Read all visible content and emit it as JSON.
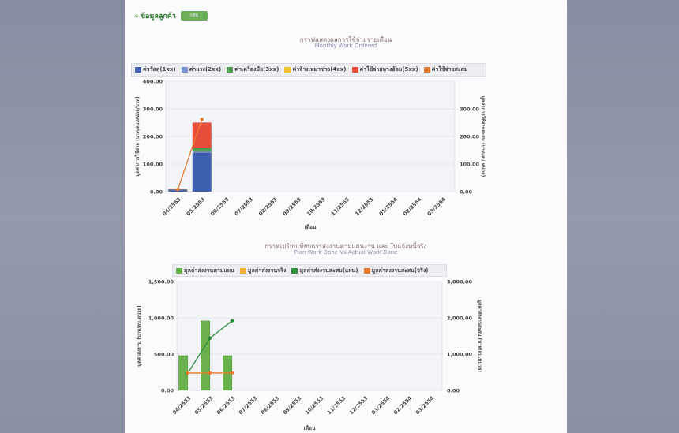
{
  "header": {
    "back_link": "ข้อมูลลูกค้า",
    "button_label": "กลับ"
  },
  "chart_data": [
    {
      "type": "bar",
      "title": "กราฟแสดงผลการใช้จ่ายรายเดือน",
      "subtitle": "Monthly Work Ordered",
      "xlabel": "เดือน",
      "ylabel": "มูลค่าการใช้จ่าย (บาท/ลบ.หน่วย/บาท)",
      "y2label": "มูลค่าการใช้จ่ายสะสม (บาท/ลบ.หน่วย)",
      "categories": [
        "04/2553",
        "05/2553",
        "06/2553",
        "07/2553",
        "08/2553",
        "09/2553",
        "10/2553",
        "11/2553",
        "12/2553",
        "01/2554",
        "02/2554",
        "03/2554"
      ],
      "ylim": [
        0,
        400
      ],
      "y2lim": [
        0,
        400
      ],
      "yticks": [
        "0.00",
        "100.00",
        "200.00",
        "300.00",
        "400.00"
      ],
      "y2ticks": [
        "0.00",
        "100.00",
        "200.00",
        "300.00"
      ],
      "legend_position": "top",
      "series": [
        {
          "name": "ค่าวัสดุ(1xx)",
          "color": "#3f5fb0",
          "kind": "stacked-bar",
          "values": [
            5,
            140,
            null,
            null,
            null,
            null,
            null,
            null,
            null,
            null,
            null,
            null
          ]
        },
        {
          "name": "ค่าแรง(2xx)",
          "color": "#7c8fd0",
          "kind": "stacked-bar",
          "values": [
            2,
            5,
            null,
            null,
            null,
            null,
            null,
            null,
            null,
            null,
            null,
            null
          ]
        },
        {
          "name": "ค่าเครื่องมือ(3xx)",
          "color": "#55a055",
          "kind": "stacked-bar",
          "values": [
            1,
            12,
            null,
            null,
            null,
            null,
            null,
            null,
            null,
            null,
            null,
            null
          ]
        },
        {
          "name": "ค่าจ้างเหมาช่วง(4xx)",
          "color": "#f0c030",
          "kind": "stacked-bar",
          "values": [
            0,
            0,
            null,
            null,
            null,
            null,
            null,
            null,
            null,
            null,
            null,
            null
          ]
        },
        {
          "name": "ค่าใช้จ่ายทางอ้อม(5xx)",
          "color": "#e84c3a",
          "kind": "stacked-bar",
          "values": [
            2,
            93,
            null,
            null,
            null,
            null,
            null,
            null,
            null,
            null,
            null,
            null
          ]
        },
        {
          "name": "ค่าใช้จ่ายสะสม",
          "color": "#e8782a",
          "kind": "line",
          "axis": "right",
          "values": [
            8,
            262,
            null,
            null,
            null,
            null,
            null,
            null,
            null,
            null,
            null,
            null
          ]
        }
      ]
    },
    {
      "type": "bar",
      "title": "กราฟเปรียบเทียบการส่งงานตามแผนงาน และ ใบแจ้งหนี้จริง",
      "subtitle": "Plan Work Done Vs Actual Work Done",
      "xlabel": "เดือน",
      "ylabel": "มูลค่าส่งงาน (บาท/ลบ.หน่วย)",
      "y2label": "มูลค่าส่งงานสะสม (บาท/ลบ.หน่วย)",
      "categories": [
        "04/2553",
        "05/2553",
        "06/2553",
        "07/2553",
        "08/2553",
        "09/2553",
        "10/2553",
        "11/2553",
        "12/2553",
        "01/2554",
        "02/2554",
        "03/2554"
      ],
      "ylim": [
        0,
        1500
      ],
      "y2lim": [
        0,
        3000
      ],
      "yticks": [
        "0.00",
        "500.00",
        "1,000.00",
        "1,500.00"
      ],
      "y2ticks": [
        "0.00",
        "1,000.00",
        "2,000.00",
        "3,000.00"
      ],
      "legend_position": "top",
      "series": [
        {
          "name": "มูลค่าส่งงานตามแผน",
          "color": "#6ab04c",
          "kind": "bar",
          "values": [
            480,
            960,
            480,
            null,
            null,
            null,
            null,
            null,
            null,
            null,
            null,
            null
          ]
        },
        {
          "name": "มูลค่าส่งงานจริง",
          "color": "#f0b030",
          "kind": "bar",
          "values": [
            0,
            0,
            0,
            null,
            null,
            null,
            null,
            null,
            null,
            null,
            null,
            null
          ]
        },
        {
          "name": "มูลค่าส่งงานสะสม(แผน)",
          "color": "#2e8b3a",
          "kind": "line",
          "axis": "right",
          "values": [
            480,
            1440,
            1920,
            null,
            null,
            null,
            null,
            null,
            null,
            null,
            null,
            null
          ]
        },
        {
          "name": "มูลค่าส่งงานสะสม(จริง)",
          "color": "#e8782a",
          "kind": "line",
          "axis": "right",
          "values": [
            480,
            480,
            480,
            null,
            null,
            null,
            null,
            null,
            null,
            null,
            null,
            null
          ]
        }
      ]
    }
  ]
}
